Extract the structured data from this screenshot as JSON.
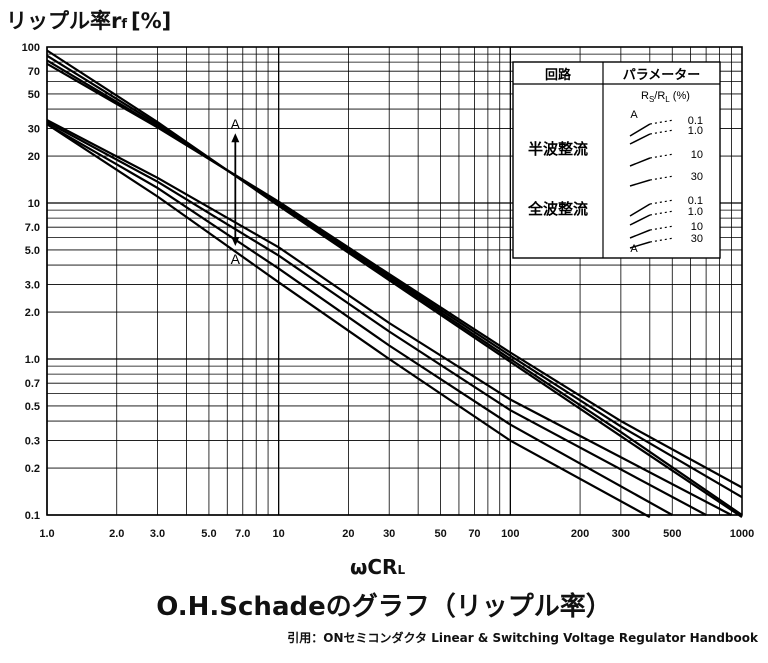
{
  "chart_data": {
    "type": "line",
    "y_title_main": "リップル率r",
    "y_title_sub": "f",
    "y_title_unit": "[%]",
    "x_title_main": "ωCR",
    "x_title_sub": "L",
    "x_scale": "log",
    "y_scale": "log",
    "xlim": [
      1,
      1000
    ],
    "ylim": [
      0.1,
      100
    ],
    "grid": true,
    "x_ticks": [
      "1.0",
      "2.0",
      "3.0",
      "5.0",
      "7.0",
      "10",
      "20",
      "30",
      "50",
      "70",
      "100",
      "200",
      "300",
      "500",
      "1000"
    ],
    "x_tick_values": [
      1,
      2,
      3,
      5,
      7,
      10,
      20,
      30,
      50,
      70,
      100,
      200,
      300,
      500,
      1000
    ],
    "y_ticks": [
      "100",
      "70",
      "50",
      "30",
      "20",
      "10",
      "7.0",
      "5.0",
      "3.0",
      "2.0",
      "1.0",
      "0.7",
      "0.5",
      "0.3",
      "0.2",
      "0.1"
    ],
    "y_tick_values": [
      100,
      70,
      50,
      30,
      20,
      10,
      7,
      5,
      3,
      2,
      1,
      0.7,
      0.5,
      0.3,
      0.2,
      0.1
    ],
    "marker": {
      "label_top": "A",
      "label_bottom": "A",
      "x": 6.5,
      "y_top": 28,
      "y_bottom": 5.3
    },
    "series": [
      {
        "group": "半波整流",
        "param": "0.1",
        "points": [
          [
            1,
            95
          ],
          [
            3,
            33
          ],
          [
            10,
            9.6
          ],
          [
            30,
            3.2
          ],
          [
            100,
            0.96
          ],
          [
            300,
            0.32
          ],
          [
            1000,
            0.097
          ]
        ]
      },
      {
        "group": "半波整流",
        "param": "1.0",
        "points": [
          [
            1,
            88
          ],
          [
            3,
            32
          ],
          [
            10,
            9.8
          ],
          [
            30,
            3.3
          ],
          [
            100,
            1.0
          ],
          [
            300,
            0.34
          ],
          [
            1000,
            0.1
          ]
        ]
      },
      {
        "group": "半波整流",
        "param": "10",
        "points": [
          [
            1,
            82
          ],
          [
            3,
            31
          ],
          [
            10,
            10
          ],
          [
            30,
            3.4
          ],
          [
            100,
            1.05
          ],
          [
            300,
            0.37
          ],
          [
            1000,
            0.13
          ]
        ]
      },
      {
        "group": "半波整流",
        "param": "30",
        "points": [
          [
            1,
            78
          ],
          [
            3,
            30.5
          ],
          [
            10,
            10.2
          ],
          [
            30,
            3.5
          ],
          [
            100,
            1.1
          ],
          [
            300,
            0.4
          ],
          [
            1000,
            0.15
          ]
        ]
      },
      {
        "group": "全波整流",
        "param": "0.1",
        "points": [
          [
            1,
            32
          ],
          [
            3,
            11
          ],
          [
            10,
            3.1
          ],
          [
            30,
            1.0
          ],
          [
            100,
            0.3
          ],
          [
            400,
            0.097
          ]
        ]
      },
      {
        "group": "全波整流",
        "param": "1.0",
        "points": [
          [
            1,
            32
          ],
          [
            3,
            12.5
          ],
          [
            10,
            3.8
          ],
          [
            30,
            1.22
          ],
          [
            100,
            0.38
          ],
          [
            500,
            0.1
          ]
        ]
      },
      {
        "group": "全波整流",
        "param": "10",
        "points": [
          [
            1,
            33
          ],
          [
            3,
            13.7
          ],
          [
            10,
            4.6
          ],
          [
            30,
            1.5
          ],
          [
            100,
            0.47
          ],
          [
            700,
            0.1
          ]
        ]
      },
      {
        "group": "全波整流",
        "param": "30",
        "points": [
          [
            1,
            34
          ],
          [
            3,
            14.5
          ],
          [
            10,
            5.2
          ],
          [
            30,
            1.7
          ],
          [
            100,
            0.55
          ],
          [
            900,
            0.1
          ]
        ]
      }
    ],
    "legend": {
      "header_circuit": "回路",
      "header_param": "パラメーター",
      "param_label_main": "R",
      "param_label_s": "S",
      "param_label_sep": "/R",
      "param_label_l": "L",
      "param_label_unit": " (%)",
      "label_a_top": "A",
      "label_a_bottom": "A",
      "groups": [
        {
          "name": "半波整流",
          "values": [
            "0.1",
            "1.0",
            "10",
            "30"
          ]
        },
        {
          "name": "全波整流",
          "values": [
            "0.1",
            "1.0",
            "10",
            "30"
          ]
        }
      ]
    }
  },
  "caption": {
    "title": "O.H.Schadeのグラフ（リップル率）",
    "source": "引用：ONセミコンダクタ Linear & Switching Voltage Regulator Handbook"
  }
}
